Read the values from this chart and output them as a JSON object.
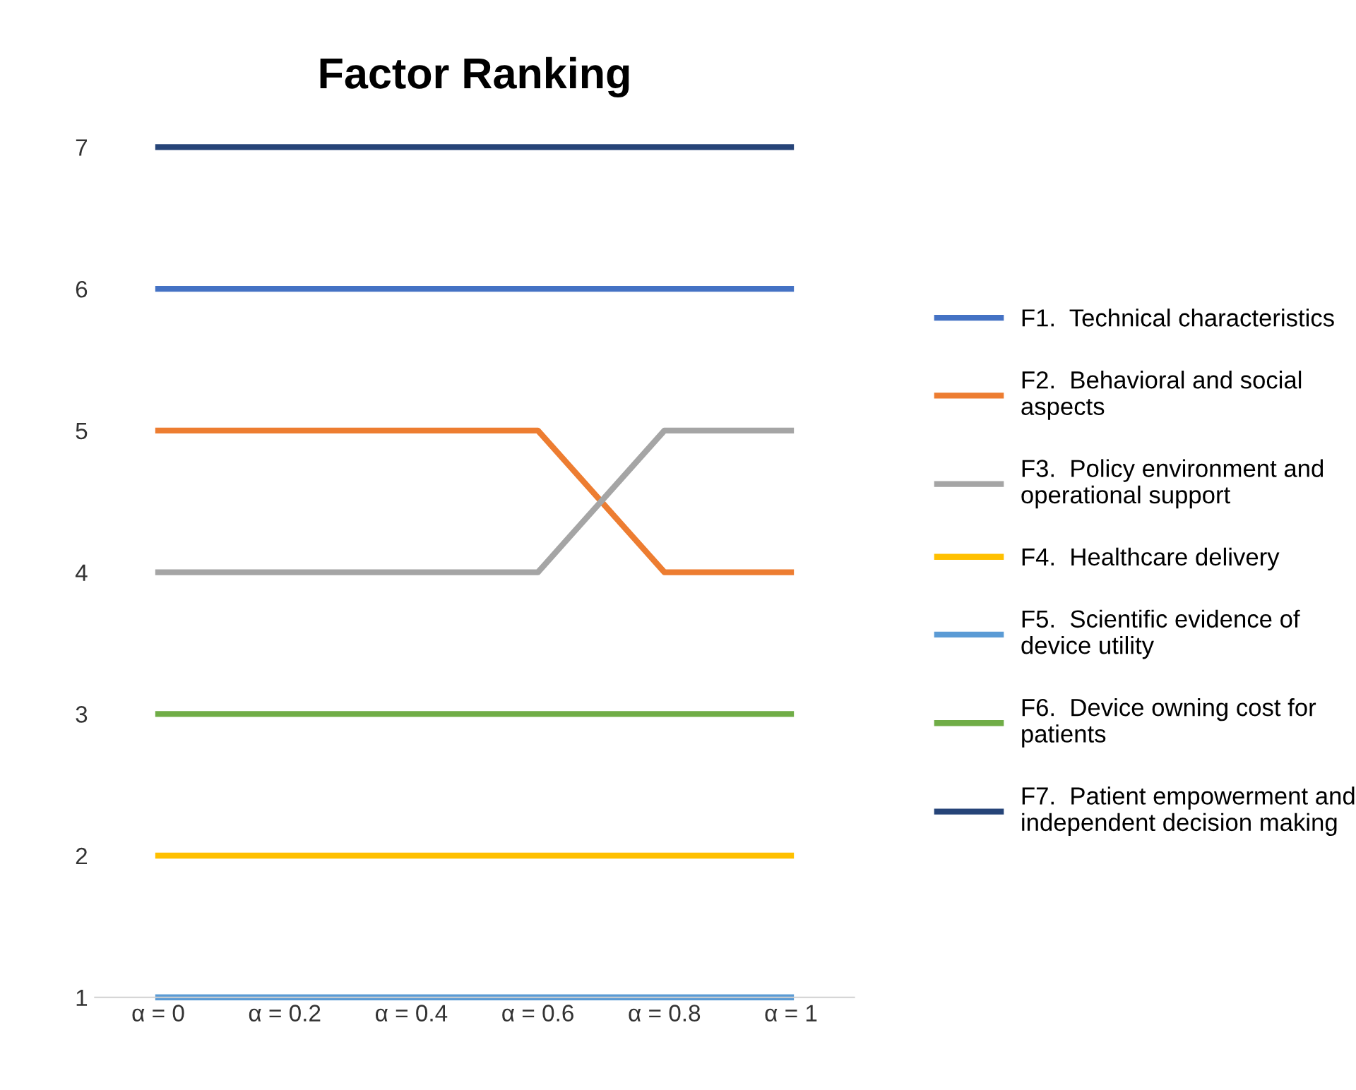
{
  "chart_data": {
    "type": "line",
    "title": "Factor Ranking",
    "categories": [
      "α = 0",
      "α = 0.2",
      "α = 0.4",
      "α = 0.6",
      "α = 0.8",
      "α = 1"
    ],
    "series": [
      {
        "name": "F1.  Technical characteristics",
        "color": "#4472c4",
        "values": [
          6,
          6,
          6,
          6,
          6,
          6
        ]
      },
      {
        "name": "F2.  Behavioral and social aspects",
        "color": "#ed7d31",
        "values": [
          5,
          5,
          5,
          5,
          4,
          4
        ]
      },
      {
        "name": "F3.  Policy environment and operational support",
        "color": "#a5a5a5",
        "values": [
          4,
          4,
          4,
          4,
          5,
          5
        ]
      },
      {
        "name": "F4.  Healthcare delivery",
        "color": "#ffc000",
        "values": [
          2,
          2,
          2,
          2,
          2,
          2
        ]
      },
      {
        "name": "F5.  Scientific evidence of device utility",
        "color": "#5b9bd5",
        "values": [
          1,
          1,
          1,
          1,
          1,
          1
        ]
      },
      {
        "name": "F6.  Device owning cost for patients",
        "color": "#70ad47",
        "values": [
          3,
          3,
          3,
          3,
          3,
          3
        ]
      },
      {
        "name": "F7.  Patient empowerment and independent decision making",
        "color": "#264478",
        "values": [
          7,
          7,
          7,
          7,
          7,
          7
        ]
      }
    ],
    "ylim": [
      1,
      7
    ],
    "yticks": [
      1,
      2,
      3,
      4,
      5,
      6,
      7
    ],
    "grid": false,
    "legend": "right",
    "marker": "none",
    "line_style": "solid"
  }
}
